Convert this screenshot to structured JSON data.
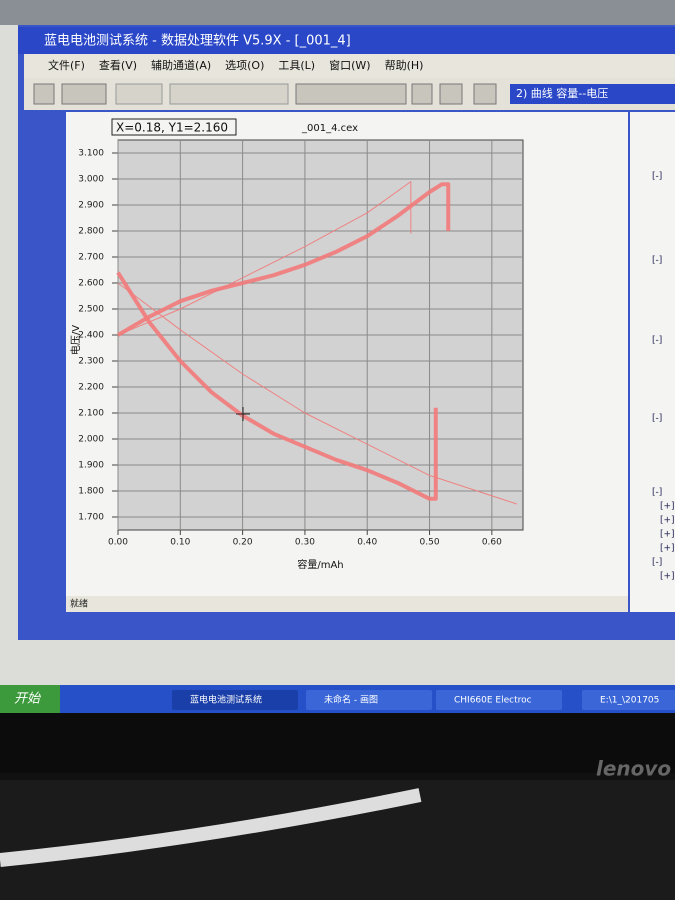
{
  "window": {
    "title": "蓝电电池测试系统 - 数据处理软件 V5.9X - [_001_4]"
  },
  "menu": [
    "文件(F)",
    "查看(V)",
    "辅助通道(A)",
    "选项(O)",
    "工具(L)",
    "窗口(W)",
    "帮助(H)"
  ],
  "toolbar": {
    "combo": "2) 曲线  容量--电压"
  },
  "status": "就绪",
  "tree": [
    "[-]",
    "[-]",
    "[-]",
    "[-]",
    "[-]",
    "[+]",
    "[+]",
    "[+]",
    "[+]",
    "[-]",
    "[+]"
  ],
  "taskbar": {
    "start": "开始",
    "items": [
      "蓝电电池测试系统",
      "未命名 - 画图",
      "CHI660E Electroc",
      "E:\\1_\\201705"
    ]
  },
  "chart_data": {
    "type": "line",
    "title": "_001_4.cex",
    "annotation": "X=0.18, Y1=2.160",
    "x_label": "容量/mAh",
    "y_label": "电压/V",
    "xlim": [
      0,
      0.65
    ],
    "ylim": [
      1.65,
      3.15
    ],
    "xticks": [
      {
        "value": 0,
        "label": "0.00"
      },
      {
        "value": 0.1,
        "label": "0.10"
      },
      {
        "value": 0.2,
        "label": "0.20"
      },
      {
        "value": 0.3,
        "label": "0.30"
      },
      {
        "value": 0.4,
        "label": "0.40"
      },
      {
        "value": 0.5,
        "label": "0.50"
      },
      {
        "value": 0.6,
        "label": "0.60"
      }
    ],
    "yticks": [
      {
        "value": 1.7,
        "label": "1.700"
      },
      {
        "value": 1.8,
        "label": "1.800"
      },
      {
        "value": 1.9,
        "label": "1.900"
      },
      {
        "value": 2.0,
        "label": "2.000"
      },
      {
        "value": 2.1,
        "label": "2.100"
      },
      {
        "value": 2.2,
        "label": "2.200"
      },
      {
        "value": 2.3,
        "label": "2.300"
      },
      {
        "value": 2.4,
        "label": "2.400"
      },
      {
        "value": 2.5,
        "label": "2.500"
      },
      {
        "value": 2.6,
        "label": "2.600"
      },
      {
        "value": 2.7,
        "label": "2.700"
      },
      {
        "value": 2.8,
        "label": "2.800"
      },
      {
        "value": 2.9,
        "label": "2.900"
      },
      {
        "value": 3.0,
        "label": "3.000"
      },
      {
        "value": 3.1,
        "label": "3.100"
      }
    ],
    "grid": true,
    "series": [
      {
        "color": "#f27a7a",
        "width": 4,
        "x": [
          0,
          0.05,
          0.1,
          0.15,
          0.2,
          0.25,
          0.3,
          0.35,
          0.4,
          0.45,
          0.5,
          0.52,
          0.53,
          0.53
        ],
        "values": [
          2.4,
          2.47,
          2.53,
          2.57,
          2.6,
          2.63,
          2.67,
          2.72,
          2.78,
          2.86,
          2.95,
          2.98,
          2.98,
          2.8
        ]
      },
      {
        "color": "#f27a7a",
        "width": 4,
        "x": [
          0,
          0.05,
          0.1,
          0.15,
          0.2,
          0.25,
          0.3,
          0.35,
          0.4,
          0.45,
          0.5,
          0.51,
          0.51
        ],
        "values": [
          2.64,
          2.45,
          2.3,
          2.18,
          2.09,
          2.02,
          1.97,
          1.92,
          1.88,
          1.83,
          1.77,
          1.77,
          2.12
        ]
      },
      {
        "color": "#f27a7a",
        "width": 1,
        "x": [
          0,
          0.1,
          0.2,
          0.3,
          0.4,
          0.47,
          0.47
        ],
        "values": [
          2.4,
          2.5,
          2.62,
          2.74,
          2.87,
          2.99,
          2.79
        ]
      },
      {
        "color": "#f27a7a",
        "width": 1,
        "x": [
          0,
          0.1,
          0.2,
          0.3,
          0.4,
          0.5,
          0.64
        ],
        "values": [
          2.6,
          2.42,
          2.25,
          2.1,
          1.98,
          1.86,
          1.75
        ]
      }
    ]
  }
}
